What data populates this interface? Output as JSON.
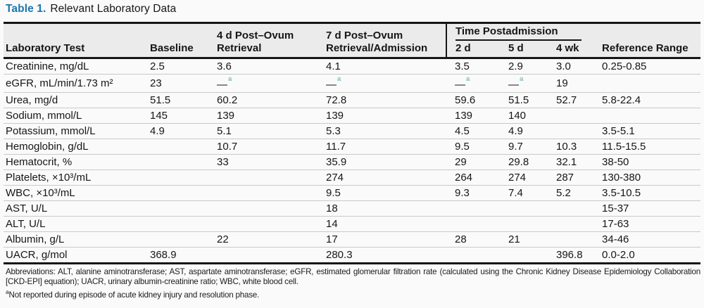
{
  "title": {
    "label": "Table 1.",
    "caption": "Relevant Laboratory Data"
  },
  "colors": {
    "title_blue": "#1b76ae",
    "note_teal": "#5aa7b4",
    "rule_black": "#161616",
    "divider_gray": "#c9c9c9",
    "header_bg": "#ebebeb"
  },
  "table": {
    "headers": {
      "lab_test": "Laboratory Test",
      "baseline": "Baseline",
      "post4": "4 d Post–Ovum Retrieval",
      "post7": "7 d Post–Ovum Retrieval/Admission",
      "group": "Time Postadmission",
      "d2": "2 d",
      "d5": "5 d",
      "wk4": "4 wk",
      "ref": "Reference Range"
    },
    "rows": [
      {
        "test": "Creatinine, mg/dL",
        "values": [
          "2.5",
          "3.6",
          "4.1",
          "3.5",
          "2.9",
          "3.0",
          "0.25-0.85"
        ]
      },
      {
        "test": "eGFR, mL/min/1.73 m²",
        "values": [
          "23",
          "—ᵃ",
          "—ᵃ",
          "—ᵃ",
          "—ᵃ",
          "19",
          ""
        ]
      },
      {
        "test": "Urea, mg/d",
        "values": [
          "51.5",
          "60.2",
          "72.8",
          "59.6",
          "51.5",
          "52.7",
          "5.8-22.4"
        ]
      },
      {
        "test": "Sodium, mmol/L",
        "values": [
          "145",
          "139",
          "139",
          "139",
          "140",
          "",
          ""
        ]
      },
      {
        "test": "Potassium, mmol/L",
        "values": [
          "4.9",
          "5.1",
          "5.3",
          "4.5",
          "4.9",
          "",
          "3.5-5.1"
        ]
      },
      {
        "test": "Hemoglobin, g/dL",
        "values": [
          "",
          "10.7",
          "11.7",
          "9.5",
          "9.7",
          "10.3",
          "11.5-15.5"
        ]
      },
      {
        "test": "Hematocrit, %",
        "values": [
          "",
          "33",
          "35.9",
          "29",
          "29.8",
          "32.1",
          "38-50"
        ]
      },
      {
        "test": "Platelets, ×10³/mL",
        "values": [
          "",
          "",
          "274",
          "264",
          "274",
          "287",
          "130-380"
        ]
      },
      {
        "test": "WBC, ×10³/mL",
        "values": [
          "",
          "",
          "9.5",
          "9.3",
          "7.4",
          "5.2",
          "3.5-10.5"
        ]
      },
      {
        "test": "AST, U/L",
        "values": [
          "",
          "",
          "18",
          "",
          "",
          "",
          "15-37"
        ]
      },
      {
        "test": "ALT, U/L",
        "values": [
          "",
          "",
          "14",
          "",
          "",
          "",
          "17-63"
        ]
      },
      {
        "test": "Albumin, g/L",
        "values": [
          "",
          "22",
          "17",
          "28",
          "21",
          "",
          "34-46"
        ]
      },
      {
        "test": "UACR, g/mol",
        "values": [
          "368.9",
          "",
          "280.3",
          "",
          "",
          "396.8",
          "0.0-2.0"
        ]
      }
    ]
  },
  "footnotes": {
    "abbreviations": "Abbreviations: ALT, alanine aminotransferase; AST, aspartate aminotransferase; eGFR, estimated glomerular filtration rate (calculated using the Chronic Kidney Disease Epidemiology Collaboration [CKD-EPI] equation); UACR, urinary albumin-creatinine ratio; WBC, white blood cell.",
    "note_a_marker": "a",
    "note_a_text": "Not reported during episode of acute kidney injury and resolution phase."
  }
}
